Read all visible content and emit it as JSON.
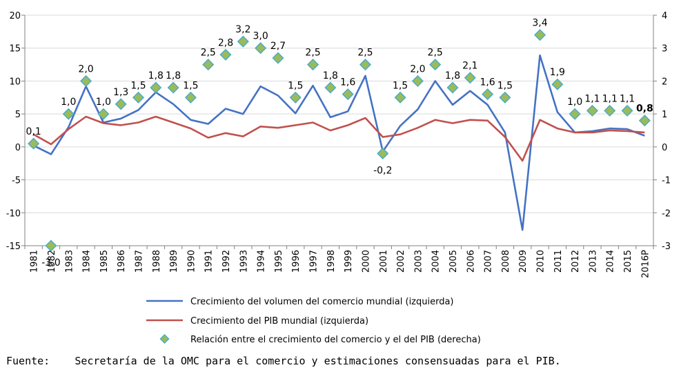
{
  "chart_data": {
    "type": "line",
    "categories": [
      "1981",
      "1982",
      "1983",
      "1984",
      "1985",
      "1986",
      "1987",
      "1988",
      "1989",
      "1990",
      "1991",
      "1992",
      "1993",
      "1994",
      "1995",
      "1996",
      "1997",
      "1998",
      "1999",
      "2000",
      "2001",
      "2002",
      "2003",
      "2004",
      "2005",
      "2006",
      "2007",
      "2008",
      "2009",
      "2010",
      "2011",
      "2012",
      "2013",
      "2014",
      "2015",
      "2016P"
    ],
    "y_left": {
      "range": [
        -15,
        20
      ],
      "ticks": [
        "-15",
        "-10",
        "-5",
        "0",
        "5",
        "10",
        "15",
        "20"
      ]
    },
    "y_right": {
      "range": [
        -3,
        4
      ],
      "ticks": [
        "-3",
        "-2",
        "-1",
        "0",
        "1",
        "2",
        "3",
        "4"
      ]
    },
    "grid": "horizontal",
    "legend_position": "bottom",
    "series": [
      {
        "name": "Crecimiento del volumen del comercio mundial (izquierda)",
        "axis": "left",
        "kind": "line",
        "color": "#4472C4",
        "values": [
          0.2,
          -1.1,
          3.0,
          9.2,
          3.7,
          4.3,
          5.6,
          8.3,
          6.5,
          4.1,
          3.5,
          5.8,
          5.0,
          9.2,
          7.8,
          5.1,
          9.3,
          4.5,
          5.4,
          10.8,
          -0.7,
          3.2,
          5.7,
          10.0,
          6.4,
          8.5,
          6.4,
          2.2,
          -12.6,
          13.9,
          5.3,
          2.2,
          2.4,
          2.8,
          2.7,
          1.7
        ]
      },
      {
        "name": "Crecimiento del PIB mundial (izquierda)",
        "axis": "left",
        "kind": "line",
        "color": "#C0504D",
        "values": [
          1.9,
          0.4,
          2.7,
          4.6,
          3.6,
          3.3,
          3.7,
          4.6,
          3.7,
          2.8,
          1.4,
          2.1,
          1.6,
          3.1,
          2.9,
          3.3,
          3.7,
          2.5,
          3.3,
          4.4,
          1.5,
          1.9,
          2.9,
          4.1,
          3.6,
          4.1,
          4.0,
          1.5,
          -2.1,
          4.1,
          2.8,
          2.2,
          2.2,
          2.5,
          2.4,
          2.2
        ]
      },
      {
        "name": "Relación entre el crecimiento del comercio y el del PIB (derecha)",
        "axis": "right",
        "kind": "marker",
        "color": "#9BBB59",
        "border_color": "#4BACC6",
        "values": [
          0.1,
          -3.0,
          1.0,
          2.0,
          1.0,
          1.3,
          1.5,
          1.8,
          1.8,
          1.5,
          2.5,
          2.8,
          3.2,
          3.0,
          2.7,
          1.5,
          2.5,
          1.8,
          1.6,
          2.5,
          -0.2,
          1.5,
          2.0,
          2.5,
          1.8,
          2.1,
          1.6,
          1.5,
          null,
          3.4,
          1.9,
          1.0,
          1.1,
          1.1,
          1.1,
          0.8
        ],
        "labels": [
          "0,1",
          "-3,0",
          "1,0",
          "2,0",
          "1,0",
          "1,3",
          "1,5",
          "1,8",
          "1,8",
          "1,5",
          "2,5",
          "2,8",
          "3,2",
          "3,0",
          "2,7",
          "1,5",
          "2,5",
          "1,8",
          "1,6",
          "2,5",
          "-0,2",
          "1,5",
          "2,0",
          "2,5",
          "1,8",
          "2,1",
          "1,6",
          "1,5",
          "",
          "3,4",
          "1,9",
          "1,0",
          "1,1",
          "1,1",
          "1,1",
          "0,8"
        ]
      }
    ]
  },
  "source": {
    "label": "Fuente:",
    "text": "Secretaría de la OMC para el comercio y estimaciones consensuadas para el PIB."
  }
}
